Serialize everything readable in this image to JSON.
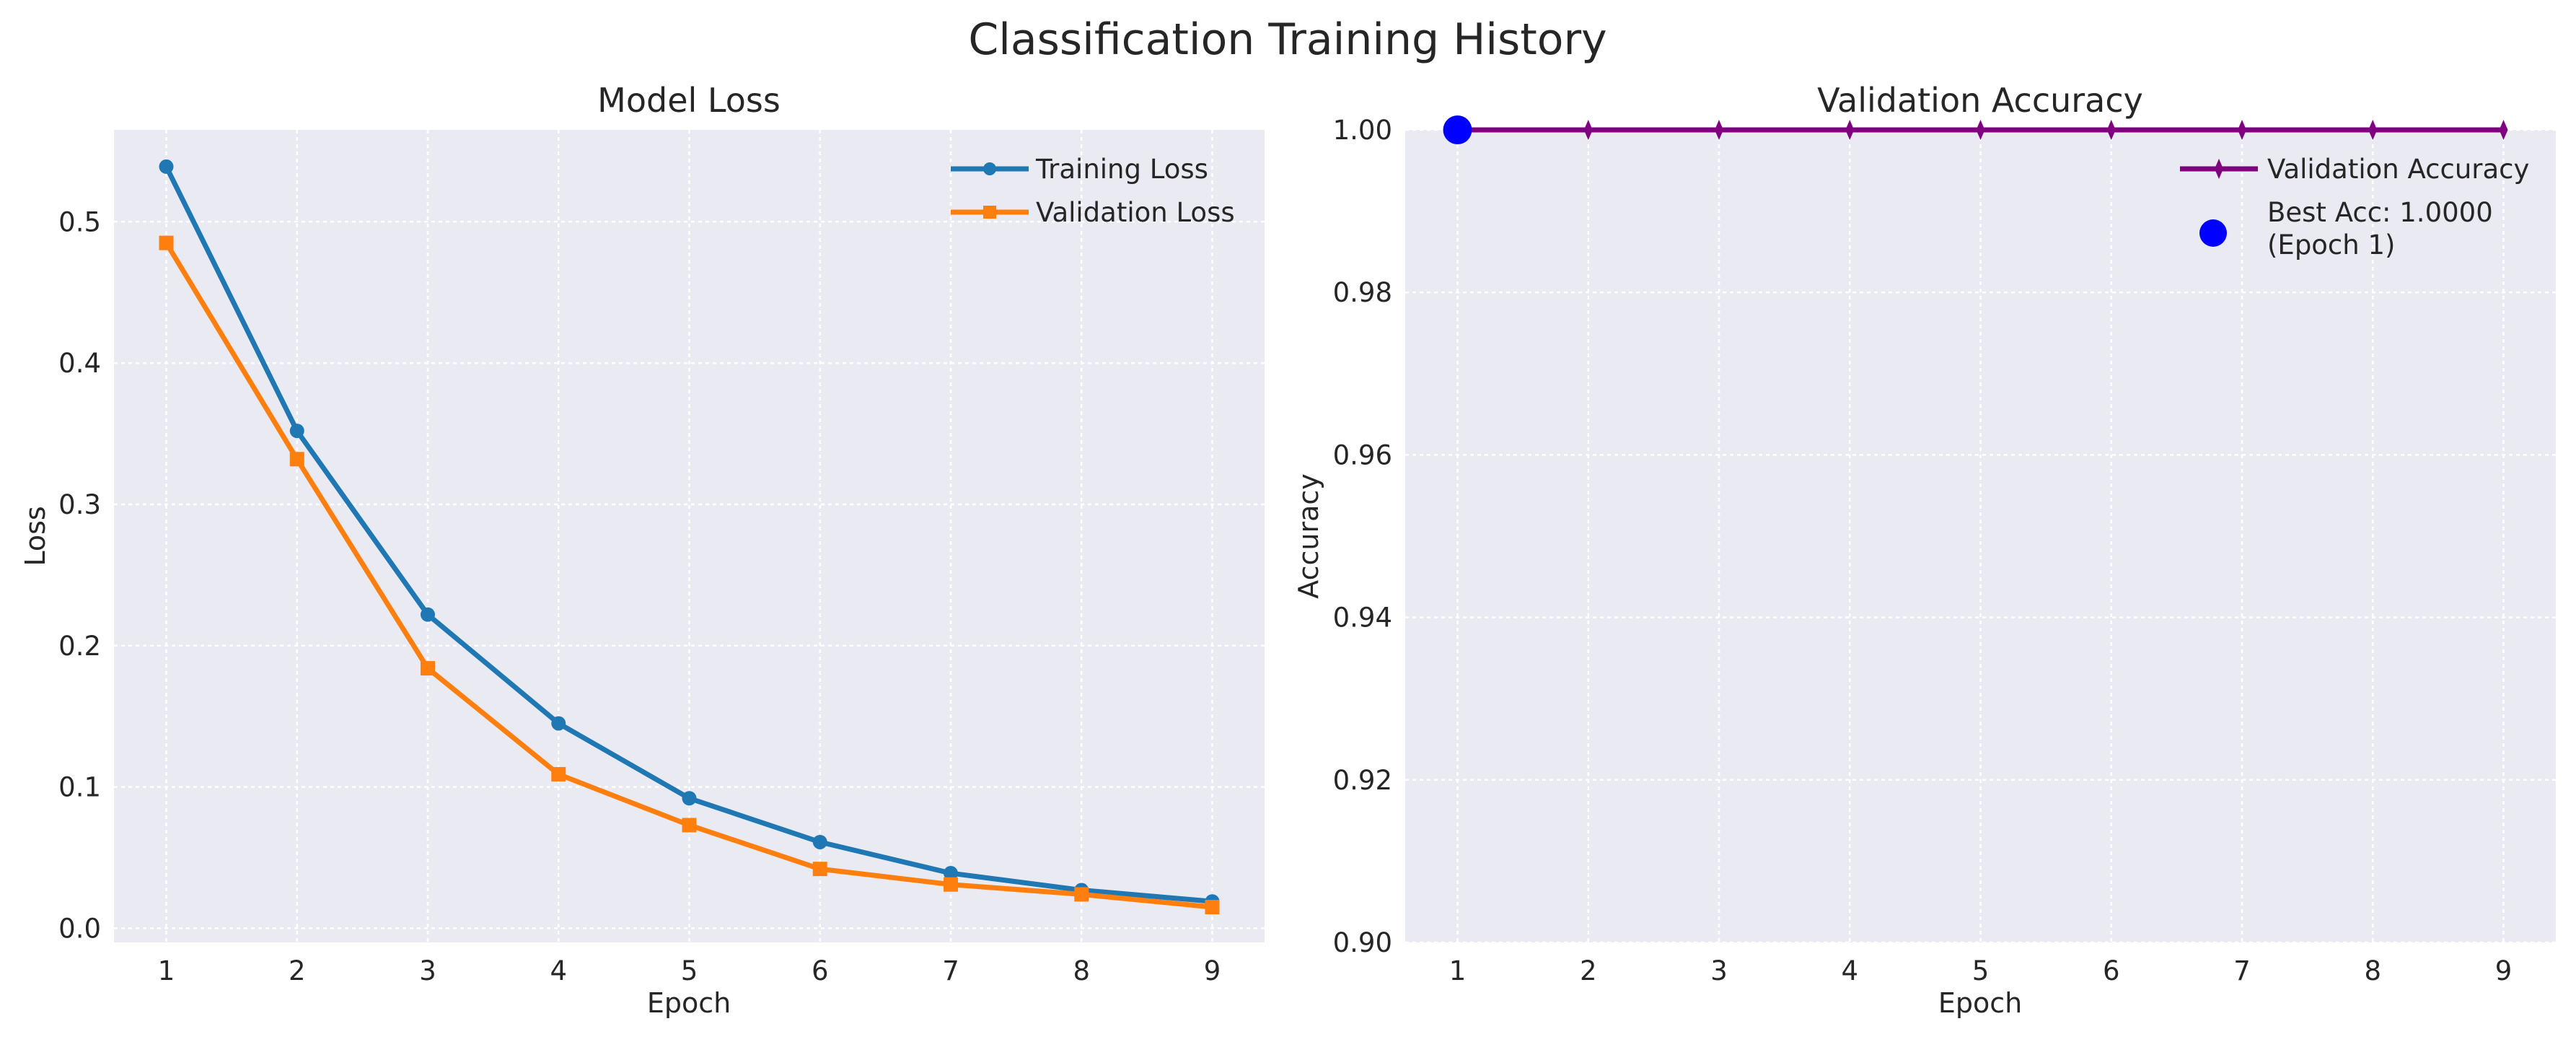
{
  "figure": {
    "suptitle": "Classification Training History"
  },
  "chart_data": [
    {
      "type": "line",
      "title": "Model Loss",
      "xlabel": "Epoch",
      "ylabel": "Loss",
      "x": [
        1,
        2,
        3,
        4,
        5,
        6,
        7,
        8,
        9
      ],
      "xlim": [
        0.6,
        9.4
      ],
      "ylim": [
        -0.01,
        0.565
      ],
      "yticks": [
        0.0,
        0.1,
        0.2,
        0.3,
        0.4,
        0.5
      ],
      "ytick_labels": [
        "0.0",
        "0.1",
        "0.2",
        "0.3",
        "0.4",
        "0.5"
      ],
      "xtick_labels": [
        "1",
        "2",
        "3",
        "4",
        "5",
        "6",
        "7",
        "8",
        "9"
      ],
      "grid": true,
      "legend_position": "upper right",
      "series": [
        {
          "name": "Training Loss",
          "values": [
            0.539,
            0.352,
            0.222,
            0.145,
            0.092,
            0.061,
            0.039,
            0.027,
            0.019
          ],
          "color": "#1f77b4",
          "marker": "circle"
        },
        {
          "name": "Validation Loss",
          "values": [
            0.485,
            0.332,
            0.184,
            0.109,
            0.073,
            0.042,
            0.031,
            0.024,
            0.015
          ],
          "color": "#ff7f0e",
          "marker": "square"
        }
      ]
    },
    {
      "type": "line",
      "title": "Validation Accuracy",
      "xlabel": "Epoch",
      "ylabel": "Accuracy",
      "x": [
        1,
        2,
        3,
        4,
        5,
        6,
        7,
        8,
        9
      ],
      "xlim": [
        0.6,
        9.4
      ],
      "ylim": [
        0.9,
        1.0
      ],
      "yticks": [
        0.9,
        0.92,
        0.94,
        0.96,
        0.98,
        1.0
      ],
      "ytick_labels": [
        "0.90",
        "0.92",
        "0.94",
        "0.96",
        "0.98",
        "1.00"
      ],
      "xtick_labels": [
        "1",
        "2",
        "3",
        "4",
        "5",
        "6",
        "7",
        "8",
        "9"
      ],
      "grid": true,
      "legend_position": "upper right",
      "series": [
        {
          "name": "Validation Accuracy",
          "values": [
            1.0,
            1.0,
            1.0,
            1.0,
            1.0,
            1.0,
            1.0,
            1.0,
            1.0
          ],
          "color": "#800080",
          "marker": "thin-diamond"
        }
      ],
      "best_point": {
        "x": 1,
        "y": 1.0,
        "label_line1": "Best Acc: 1.0000",
        "label_line2": "(Epoch 1)",
        "color": "#0000ff"
      }
    }
  ]
}
